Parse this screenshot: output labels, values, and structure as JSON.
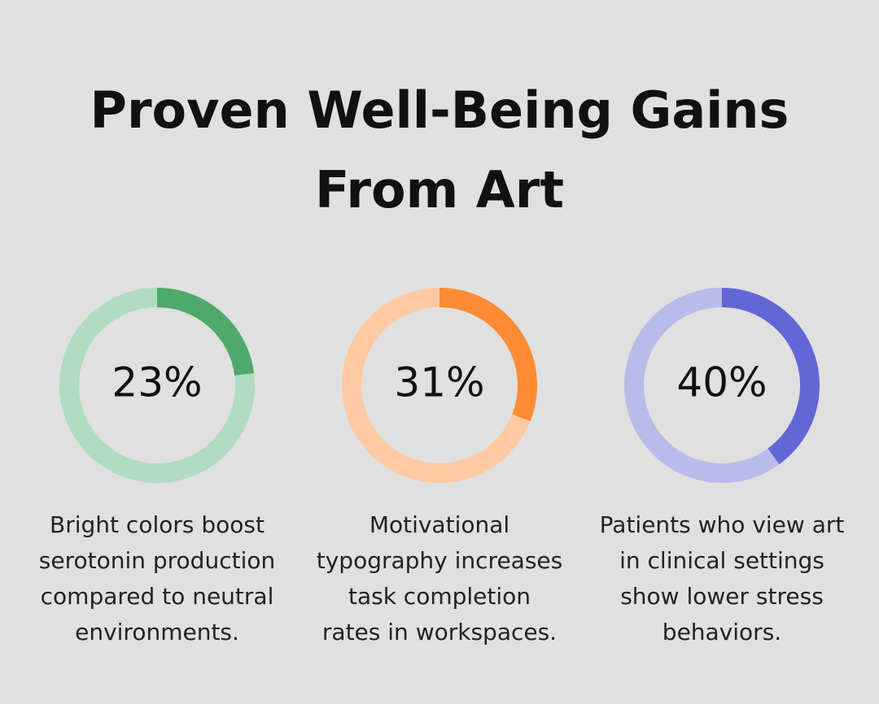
{
  "title": [
    "Proven Well-Being Gains",
    "From Art"
  ],
  "chart_data": [
    {
      "type": "donut",
      "values": [
        23
      ],
      "value_labels": [
        "23%"
      ],
      "color": "#4ea96c",
      "track_color": "#b1dcc1",
      "caption": [
        "Bright colors boost",
        "serotonin production",
        "compared to neutral",
        "environments."
      ]
    },
    {
      "type": "donut",
      "values": [
        31
      ],
      "value_labels": [
        "31%"
      ],
      "color": "#ff8b35",
      "track_color": "#ffc9a1",
      "caption": [
        "Motivational",
        "typography increases",
        "task completion",
        "rates in workspaces."
      ]
    },
    {
      "type": "donut",
      "values": [
        40
      ],
      "value_labels": [
        "40%"
      ],
      "color": "#6366d6",
      "track_color": "#b9bbea",
      "caption": [
        "Patients who view art",
        "in clinical settings",
        "show lower stress",
        "behaviors."
      ]
    }
  ]
}
